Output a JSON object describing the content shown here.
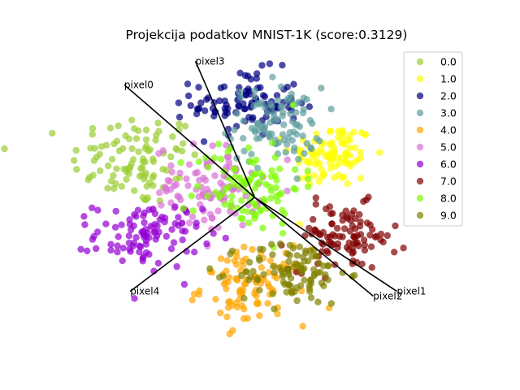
{
  "chart_data": {
    "type": "scatter",
    "title": "Projekcija podatkov MNIST-1K (score:0.3129)",
    "xlabel": "",
    "ylabel": "",
    "grid": false,
    "legend": {
      "placement": "top-right",
      "entries": [
        {
          "name": "0.0",
          "color": "#9acd32"
        },
        {
          "name": "1.0",
          "color": "#ffff00"
        },
        {
          "name": "2.0",
          "color": "#000080"
        },
        {
          "name": "3.0",
          "color": "#5f9ea0"
        },
        {
          "name": "4.0",
          "color": "#ffa500"
        },
        {
          "name": "5.0",
          "color": "#da70d6"
        },
        {
          "name": "6.0",
          "color": "#9400d3"
        },
        {
          "name": "7.0",
          "color": "#800000"
        },
        {
          "name": "8.0",
          "color": "#7cfc00"
        },
        {
          "name": "9.0",
          "color": "#808000"
        }
      ]
    },
    "xlim": [
      -3.2,
      3.6
    ],
    "ylim": [
      -3.2,
      3.2
    ],
    "origin": [
      0.0,
      0.0
    ],
    "series": [
      {
        "name": "0.0",
        "color": "#9acd32",
        "center": [
          -2.0,
          0.8
        ],
        "spread": [
          0.55,
          0.5
        ],
        "count": 100
      },
      {
        "name": "1.0",
        "color": "#ffff00",
        "center": [
          1.3,
          0.9
        ],
        "spread": [
          0.35,
          0.35
        ],
        "count": 100
      },
      {
        "name": "2.0",
        "color": "#000080",
        "center": [
          -0.15,
          2.0
        ],
        "spread": [
          0.45,
          0.35
        ],
        "count": 100
      },
      {
        "name": "3.0",
        "color": "#5f9ea0",
        "center": [
          0.35,
          1.55
        ],
        "spread": [
          0.4,
          0.4
        ],
        "count": 100
      },
      {
        "name": "4.0",
        "color": "#ffa500",
        "center": [
          0.0,
          -1.9
        ],
        "spread": [
          0.45,
          0.4
        ],
        "count": 100
      },
      {
        "name": "5.0",
        "color": "#da70d6",
        "center": [
          -0.8,
          0.2
        ],
        "spread": [
          0.45,
          0.45
        ],
        "count": 100
      },
      {
        "name": "6.0",
        "color": "#9400d3",
        "center": [
          -1.8,
          -0.8
        ],
        "spread": [
          0.45,
          0.35
        ],
        "count": 100
      },
      {
        "name": "7.0",
        "color": "#800000",
        "center": [
          1.5,
          -0.85
        ],
        "spread": [
          0.45,
          0.35
        ],
        "count": 100
      },
      {
        "name": "8.0",
        "color": "#7cfc00",
        "center": [
          -0.1,
          0.25
        ],
        "spread": [
          0.45,
          0.5
        ],
        "count": 100
      },
      {
        "name": "9.0",
        "color": "#808000",
        "center": [
          0.65,
          -1.6
        ],
        "spread": [
          0.45,
          0.35
        ],
        "count": 100
      }
    ],
    "feature_axes": [
      {
        "label": "pixel0",
        "x": -2.2,
        "y": 2.4
      },
      {
        "label": "pixel3",
        "x": -1.0,
        "y": 2.9
      },
      {
        "label": "pixel1",
        "x": 2.4,
        "y": -2.0
      },
      {
        "label": "pixel2",
        "x": 2.0,
        "y": -2.1
      },
      {
        "label": "pixel4",
        "x": -2.1,
        "y": -2.0
      }
    ]
  }
}
